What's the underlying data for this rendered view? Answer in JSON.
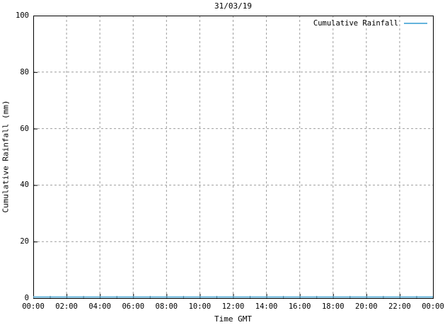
{
  "chart_data": {
    "type": "line",
    "title": "31/03/19",
    "xlabel": "Time GMT",
    "ylabel": "Cumulative Rainfall (mm)",
    "x_tick_labels": [
      "00:00",
      "02:00",
      "04:00",
      "06:00",
      "08:00",
      "10:00",
      "12:00",
      "14:00",
      "16:00",
      "18:00",
      "20:00",
      "22:00",
      "00:00"
    ],
    "x_tick_hours": [
      0,
      2,
      4,
      6,
      8,
      10,
      12,
      14,
      16,
      18,
      20,
      22,
      24
    ],
    "x_minor_step_hours": 1,
    "y_ticks": [
      0,
      20,
      40,
      60,
      80,
      100
    ],
    "ylim": [
      0,
      100
    ],
    "xlim_hours": [
      0,
      24
    ],
    "grid": "dashed",
    "legend_position": "top-right-inside",
    "series": [
      {
        "name": "Cumulative Rainfall",
        "color": "#64b4dc",
        "x_hours": [
          0,
          24
        ],
        "values": [
          0,
          0
        ]
      }
    ],
    "colors": {
      "grid": "#9e9e9e",
      "axis": "#000000",
      "background": "#ffffff",
      "text": "#000000"
    }
  }
}
